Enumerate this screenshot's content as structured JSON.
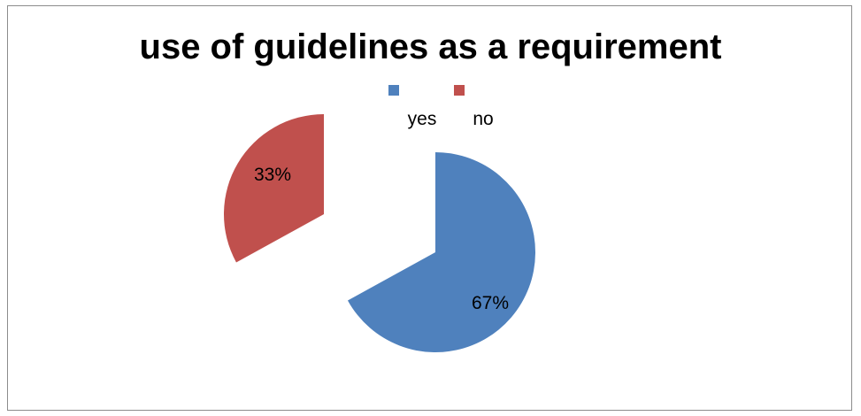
{
  "chart_data": {
    "type": "pie",
    "title": "use of guidelines as a requirement",
    "categories": [
      "yes",
      "no"
    ],
    "values": [
      67,
      33
    ],
    "data_labels": [
      "67%",
      "33%"
    ],
    "colors": [
      "#4f81bd",
      "#c0504d"
    ],
    "exploded": true,
    "legend_position": "top",
    "legend": [
      "yes",
      "no"
    ]
  }
}
